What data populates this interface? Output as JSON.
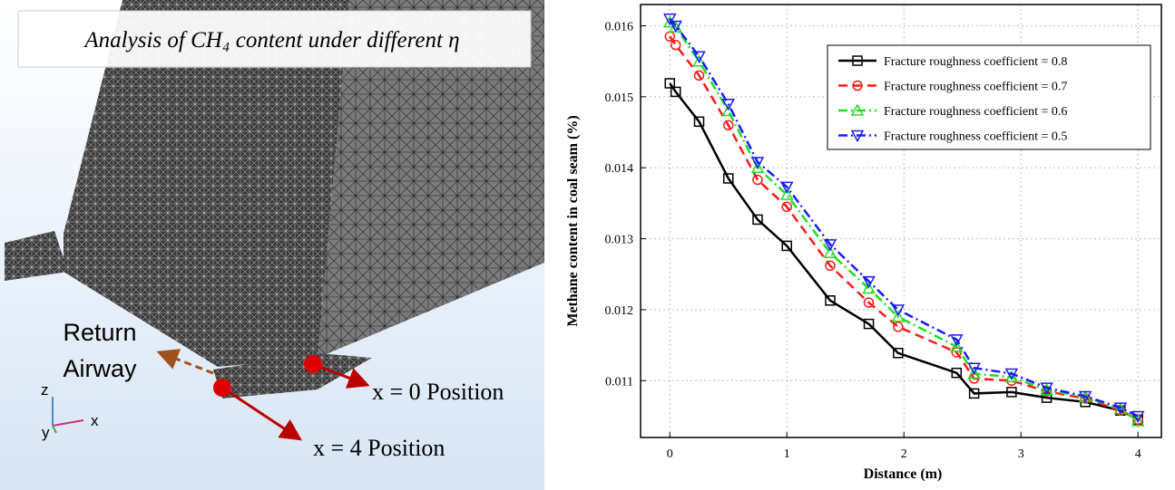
{
  "illustration": {
    "title": "Analysis of CH₄ content under different η",
    "return_airway": [
      "Return",
      "Airway"
    ],
    "position_0": "x = 0 Position",
    "position_4": "x = 4  Position",
    "axes": [
      "z",
      "y",
      "x"
    ]
  },
  "chart_data": {
    "type": "line",
    "x_label": "Distance (m)",
    "y_label": "Methane content in coal seam (%)",
    "x": [
      0,
      0.05,
      0.25,
      0.5,
      0.75,
      1,
      1.37,
      1.7,
      1.95,
      2.45,
      2.6,
      2.92,
      3.22,
      3.55,
      3.85,
      4
    ],
    "series": [
      {
        "name": "Fracture roughness coefficient = 0.8",
        "color": "#000000",
        "marker": "square",
        "dash": "solid",
        "values": [
          0.01519,
          0.01507,
          0.01465,
          0.01385,
          0.01327,
          0.0129,
          0.01213,
          0.0118,
          0.01139,
          0.01111,
          0.01082,
          0.01084,
          0.01076,
          0.0107,
          0.01058,
          0.01045
        ]
      },
      {
        "name": "Fracture roughness coefficient = 0.7",
        "color": "#ff1a1a",
        "marker": "circle",
        "dash": "dashed",
        "values": [
          0.01585,
          0.01573,
          0.0153,
          0.0146,
          0.01383,
          0.01345,
          0.01262,
          0.0121,
          0.01176,
          0.0114,
          0.01103,
          0.011,
          0.01085,
          0.01075,
          0.01058,
          0.01045
        ]
      },
      {
        "name": "Fracture roughness coefficient = 0.6",
        "color": "#22dd22",
        "marker": "triangle-up",
        "dash": "dashdot",
        "values": [
          0.01605,
          0.01598,
          0.0155,
          0.0148,
          0.014,
          0.01362,
          0.0128,
          0.0123,
          0.0119,
          0.01148,
          0.0111,
          0.01105,
          0.01087,
          0.01077,
          0.0106,
          0.01043
        ]
      },
      {
        "name": "Fracture roughness coefficient = 0.5",
        "color": "#1a1aff",
        "marker": "triangle-down",
        "dash": "dashdot",
        "values": [
          0.0161,
          0.016,
          0.01557,
          0.0149,
          0.01408,
          0.01373,
          0.01292,
          0.0124,
          0.012,
          0.01158,
          0.01118,
          0.0111,
          0.0109,
          0.01078,
          0.01062,
          0.0105
        ]
      }
    ],
    "xlim": [
      -0.25,
      4.2
    ],
    "xticks": [
      0,
      1,
      2,
      3,
      4
    ],
    "ylim": [
      0.0102,
      0.0163
    ],
    "yticks": [
      0.011,
      0.012,
      0.013,
      0.014,
      0.015,
      0.016
    ],
    "grid": true,
    "legend": "upper right"
  }
}
